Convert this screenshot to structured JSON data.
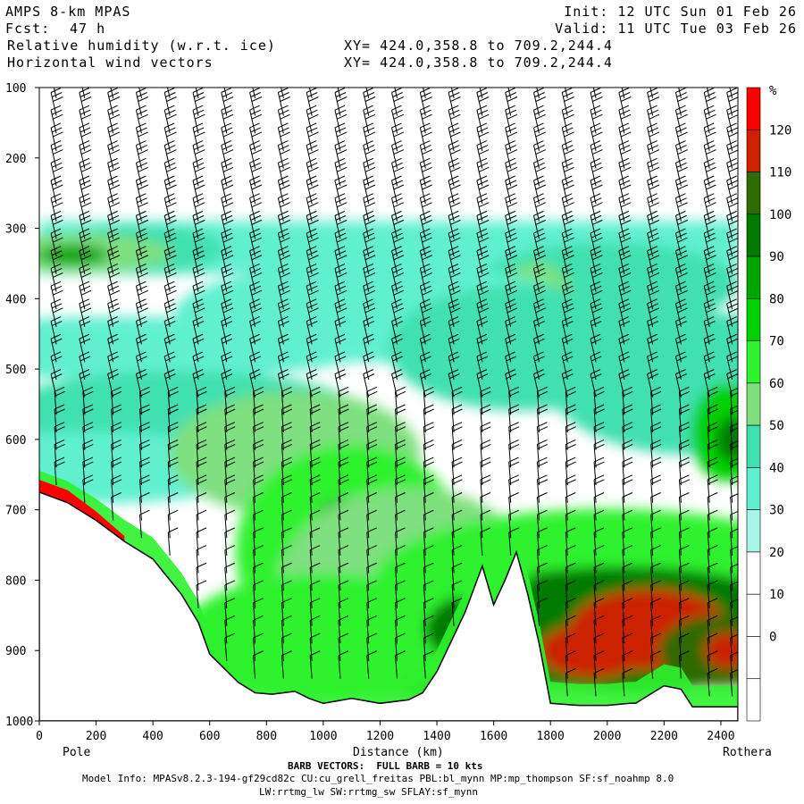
{
  "header": {
    "model": "AMPS 8-km MPAS",
    "fcst_label": "Fcst:",
    "fcst_value": "47 h",
    "field1": "Relative humidity (w.r.t. ice)",
    "field2": "Horizontal wind vectors",
    "init": "Init: 12 UTC Sun 01 Feb 26",
    "valid": "Valid: 11 UTC Tue 03 Feb 26",
    "xy1": "XY= 424.0,358.8 to 709.2,244.4",
    "xy2": "XY= 424.0,358.8 to 709.2,244.4"
  },
  "footer": {
    "barb_note": "BARB VECTORS:  FULL BARB = 10 kts",
    "model_info": "Model Info: MPASv8.2.3-194-gf29cd82c CU:cu_grell_freitas PBL:bl_mynn MP:mp_thompson SF:sf_noahmp 8.0",
    "model_info2": "LW:rrtmg_lw SW:rrtmg_sw SFLAY:sf_mynn"
  },
  "chart_data": {
    "type": "heatmap",
    "xlabel": "Distance (km)",
    "x_endpoints": {
      "left": "Pole",
      "right": "Rothera"
    },
    "xlim": [
      0,
      2460
    ],
    "ylim": [
      1000,
      100
    ],
    "x_ticks": [
      "0",
      "200",
      "400",
      "600",
      "800",
      "1000",
      "1200",
      "1400",
      "1600",
      "1800",
      "2000",
      "2200",
      "2400"
    ],
    "y_ticks": [
      "100",
      "200",
      "300",
      "400",
      "500",
      "600",
      "700",
      "800",
      "900",
      "1000"
    ],
    "colorbar": {
      "unit": "%",
      "levels": [
        "120",
        "110",
        "100",
        "90",
        "80",
        "70",
        "60",
        "50",
        "40",
        "30",
        "20",
        "10",
        "0"
      ],
      "colors": [
        "#ff0000",
        "#cc2200",
        "#2e6b00",
        "#007a00",
        "#00a600",
        "#00d200",
        "#2ef22e",
        "#7ee07e",
        "#40e0b0",
        "#60f0d0",
        "#a6f5e6",
        "#ffffff",
        "#ffffff",
        "#ffffff",
        "#ffffff"
      ]
    },
    "terrain_surface_hpa": [
      [
        0,
        675
      ],
      [
        100,
        690
      ],
      [
        200,
        715
      ],
      [
        300,
        745
      ],
      [
        400,
        770
      ],
      [
        500,
        820
      ],
      [
        560,
        860
      ],
      [
        600,
        905
      ],
      [
        650,
        925
      ],
      [
        700,
        945
      ],
      [
        760,
        960
      ],
      [
        820,
        962
      ],
      [
        900,
        958
      ],
      [
        950,
        968
      ],
      [
        1000,
        975
      ],
      [
        1100,
        968
      ],
      [
        1200,
        975
      ],
      [
        1300,
        970
      ],
      [
        1350,
        960
      ],
      [
        1400,
        930
      ],
      [
        1500,
        845
      ],
      [
        1560,
        780
      ],
      [
        1600,
        835
      ],
      [
        1640,
        800
      ],
      [
        1680,
        760
      ],
      [
        1720,
        820
      ],
      [
        1760,
        890
      ],
      [
        1800,
        975
      ],
      [
        1900,
        978
      ],
      [
        2000,
        978
      ],
      [
        2080,
        975
      ],
      [
        2100,
        975
      ],
      [
        2200,
        950
      ],
      [
        2260,
        955
      ],
      [
        2300,
        980
      ],
      [
        2460,
        980
      ]
    ],
    "barb_columns_km": [
      60,
      160,
      260,
      360,
      460,
      560,
      660,
      760,
      860,
      960,
      1060,
      1160,
      1260,
      1360,
      1460,
      1560,
      1660,
      1760,
      1860,
      1960,
      2060,
      2160,
      2260,
      2360,
      2440
    ]
  }
}
